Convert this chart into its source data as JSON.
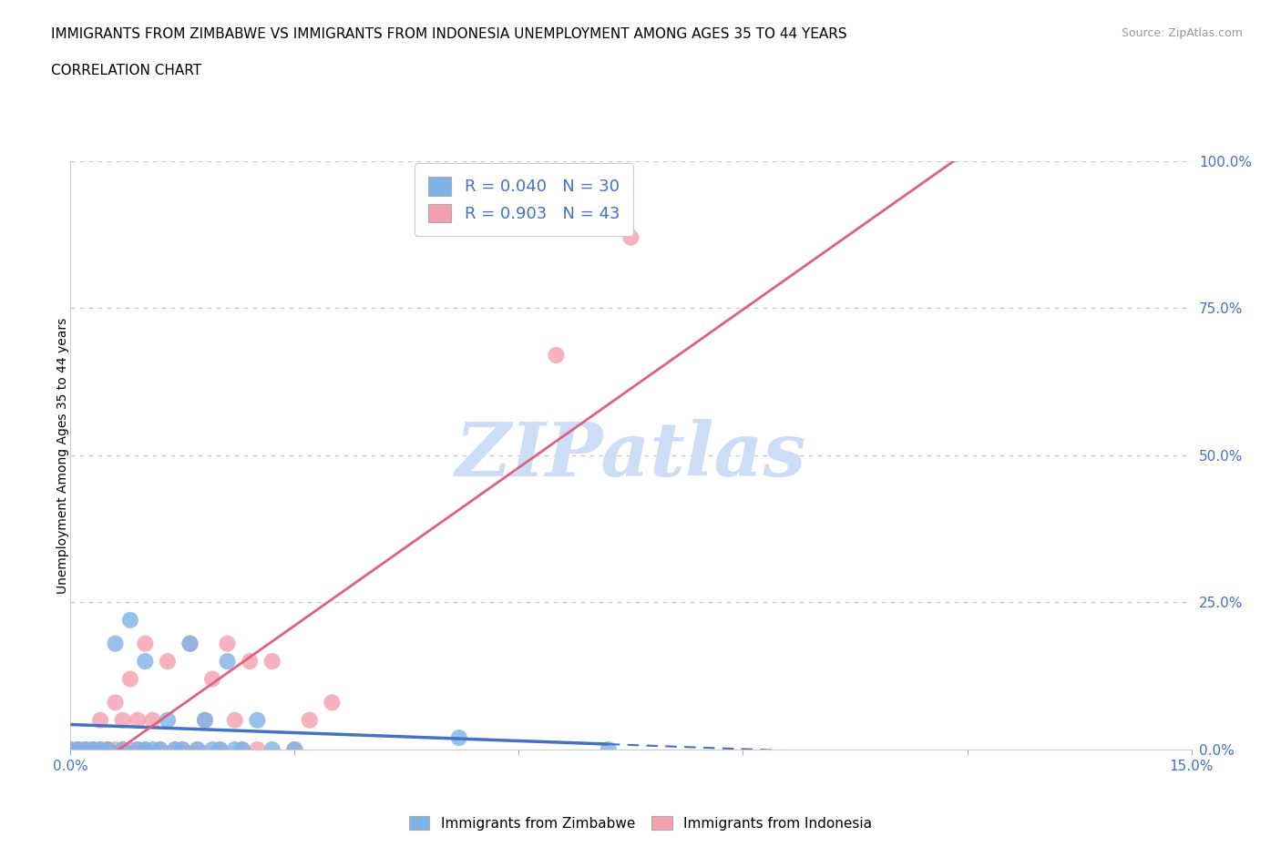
{
  "title_line1": "IMMIGRANTS FROM ZIMBABWE VS IMMIGRANTS FROM INDONESIA UNEMPLOYMENT AMONG AGES 35 TO 44 YEARS",
  "title_line2": "CORRELATION CHART",
  "source_text": "Source: ZipAtlas.com",
  "ylabel": "Unemployment Among Ages 35 to 44 years",
  "x_min": 0.0,
  "x_max": 0.15,
  "y_min": 0.0,
  "y_max": 1.0,
  "x_ticks": [
    0.0,
    0.03,
    0.06,
    0.09,
    0.12,
    0.15
  ],
  "x_tick_labels": [
    "0.0%",
    "",
    "",
    "",
    "",
    "15.0%"
  ],
  "y_ticks": [
    0.0,
    0.25,
    0.5,
    0.75,
    1.0
  ],
  "y_tick_labels": [
    "0.0%",
    "25.0%",
    "50.0%",
    "75.0%",
    "100.0%"
  ],
  "zimbabwe_color": "#7eb3e8",
  "indonesia_color": "#f4a0b0",
  "trend_zim_color": "#4472c4",
  "trend_ind_color": "#e06080",
  "zimbabwe_R": 0.04,
  "zimbabwe_N": 30,
  "indonesia_R": 0.903,
  "indonesia_N": 43,
  "watermark": "ZIPatlas",
  "watermark_color": "#ccddf5",
  "legend_label_zim": "Immigrants from Zimbabwe",
  "legend_label_ind": "Immigrants from Indonesia",
  "background_color": "#ffffff",
  "grid_color": "#c8c8d8",
  "axis_label_color": "#4472c4",
  "zim_x": [
    0.0,
    0.001,
    0.002,
    0.003,
    0.004,
    0.005,
    0.006,
    0.007,
    0.008,
    0.009,
    0.01,
    0.01,
    0.011,
    0.012,
    0.013,
    0.014,
    0.015,
    0.016,
    0.017,
    0.018,
    0.019,
    0.02,
    0.021,
    0.022,
    0.023,
    0.025,
    0.027,
    0.03,
    0.052,
    0.072
  ],
  "zim_y": [
    0.0,
    0.0,
    0.0,
    0.0,
    0.0,
    0.0,
    0.18,
    0.0,
    0.22,
    0.0,
    0.0,
    0.15,
    0.0,
    0.0,
    0.05,
    0.0,
    0.0,
    0.18,
    0.0,
    0.05,
    0.0,
    0.0,
    0.15,
    0.0,
    0.0,
    0.05,
    0.0,
    0.0,
    0.02,
    0.0
  ],
  "ind_x": [
    0.0,
    0.0,
    0.001,
    0.001,
    0.002,
    0.002,
    0.003,
    0.003,
    0.004,
    0.004,
    0.005,
    0.005,
    0.006,
    0.006,
    0.007,
    0.007,
    0.008,
    0.008,
    0.009,
    0.009,
    0.01,
    0.01,
    0.011,
    0.012,
    0.013,
    0.014,
    0.015,
    0.016,
    0.017,
    0.018,
    0.019,
    0.02,
    0.021,
    0.022,
    0.023,
    0.024,
    0.025,
    0.027,
    0.03,
    0.032,
    0.035,
    0.065,
    0.075
  ],
  "ind_y": [
    0.0,
    0.0,
    0.0,
    0.0,
    0.0,
    0.0,
    0.0,
    0.0,
    0.0,
    0.05,
    0.0,
    0.0,
    0.0,
    0.08,
    0.0,
    0.05,
    0.0,
    0.12,
    0.0,
    0.05,
    0.0,
    0.18,
    0.05,
    0.0,
    0.15,
    0.0,
    0.0,
    0.18,
    0.0,
    0.05,
    0.12,
    0.0,
    0.18,
    0.05,
    0.0,
    0.15,
    0.0,
    0.15,
    0.0,
    0.05,
    0.08,
    0.67,
    0.87
  ],
  "zim_trend_x0": 0.0,
  "zim_trend_x1": 0.072,
  "zim_trend_x_dash_end": 0.15,
  "ind_trend_x0": 0.0,
  "ind_trend_x1": 0.15
}
